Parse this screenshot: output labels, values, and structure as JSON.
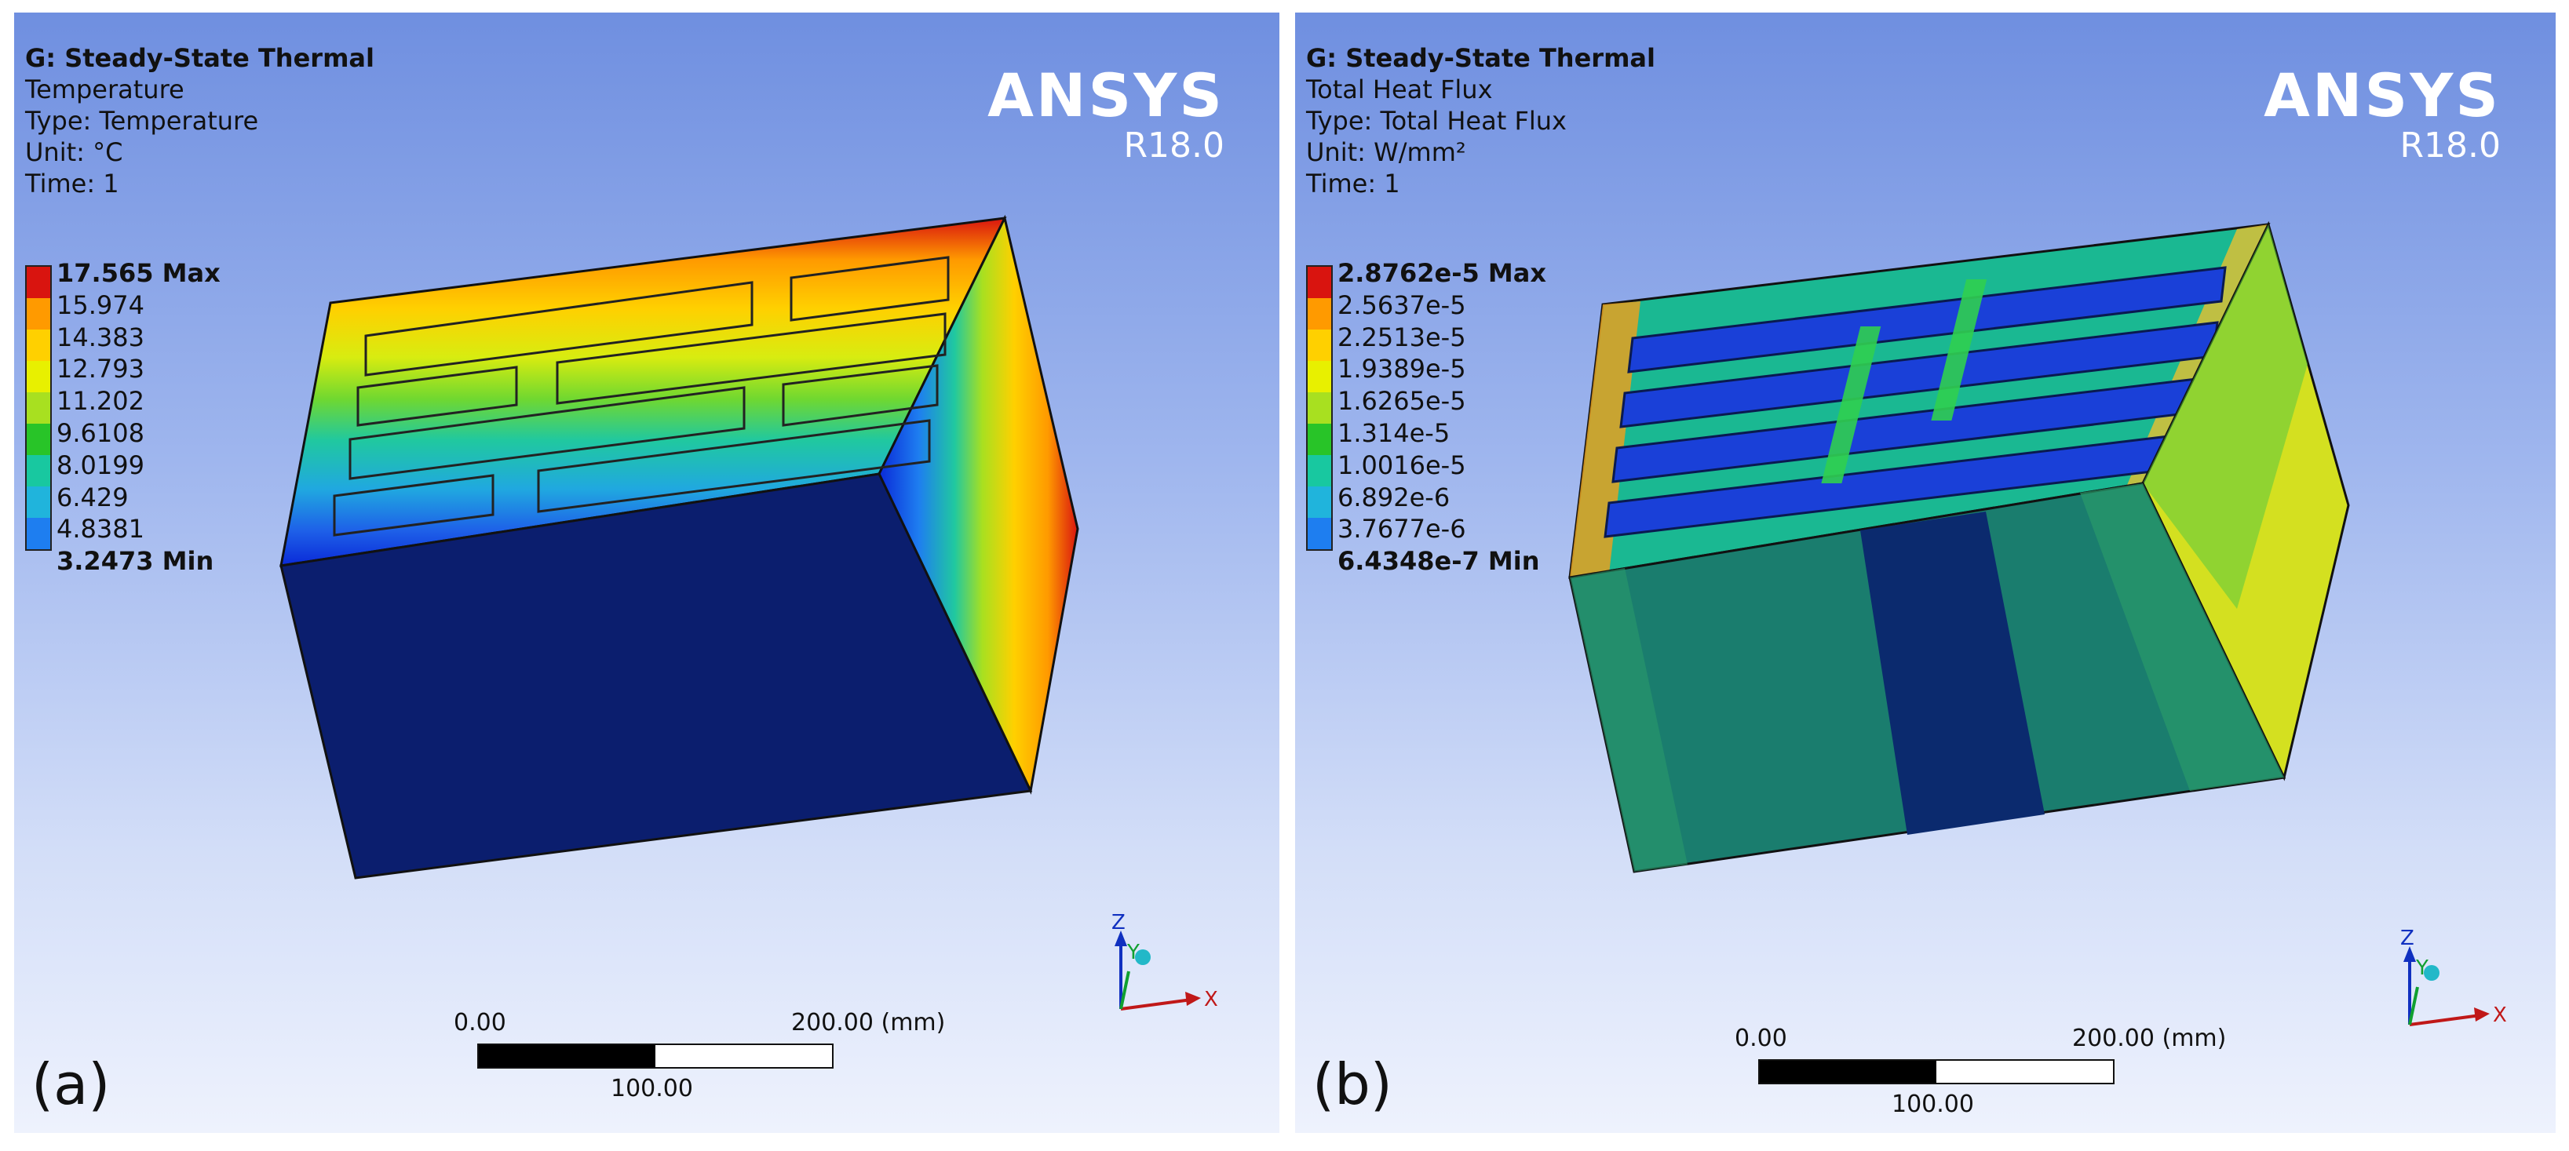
{
  "panels": [
    {
      "letter": "(a)",
      "header": {
        "title": "G: Steady-State Thermal",
        "result": "Temperature",
        "type": "Type: Temperature",
        "unit": "Unit: °C",
        "time": "Time: 1"
      },
      "brand": {
        "name": "ANSYS",
        "version": "R18.0"
      },
      "legend": {
        "labels": [
          "17.565 Max",
          "15.974",
          "14.383",
          "12.793",
          "11.202",
          "9.6108",
          "8.0199",
          "6.429",
          "4.8381",
          "3.2473 Min"
        ],
        "colors": [
          "#d9140f",
          "#ff9a00",
          "#ffd000",
          "#e8f000",
          "#a8e020",
          "#28c428",
          "#18c8a0",
          "#20b4dc",
          "#1e7ef0",
          "#0a2ad8"
        ]
      },
      "scale": {
        "left": "0.00",
        "right": "200.00 (mm)",
        "mid": "100.00"
      },
      "axes": {
        "z": "Z",
        "y": "Y",
        "x": "X"
      }
    },
    {
      "letter": "(b)",
      "header": {
        "title": "G: Steady-State Thermal",
        "result": "Total Heat Flux",
        "type": "Type: Total Heat Flux",
        "unit": "Unit: W/mm²",
        "time": "Time: 1"
      },
      "brand": {
        "name": "ANSYS",
        "version": "R18.0"
      },
      "legend": {
        "labels": [
          "2.8762e-5 Max",
          "2.5637e-5",
          "2.2513e-5",
          "1.9389e-5",
          "1.6265e-5",
          "1.314e-5",
          "1.0016e-5",
          "6.892e-6",
          "3.7677e-6",
          "6.4348e-7 Min"
        ],
        "colors": [
          "#d9140f",
          "#ff9a00",
          "#ffd000",
          "#e8f000",
          "#a8e020",
          "#28c428",
          "#18c8a0",
          "#20b4dc",
          "#1e7ef0",
          "#0a2ad8"
        ]
      },
      "scale": {
        "left": "0.00",
        "right": "200.00 (mm)",
        "mid": "100.00"
      },
      "axes": {
        "z": "Z",
        "y": "Y",
        "x": "X"
      }
    }
  ]
}
